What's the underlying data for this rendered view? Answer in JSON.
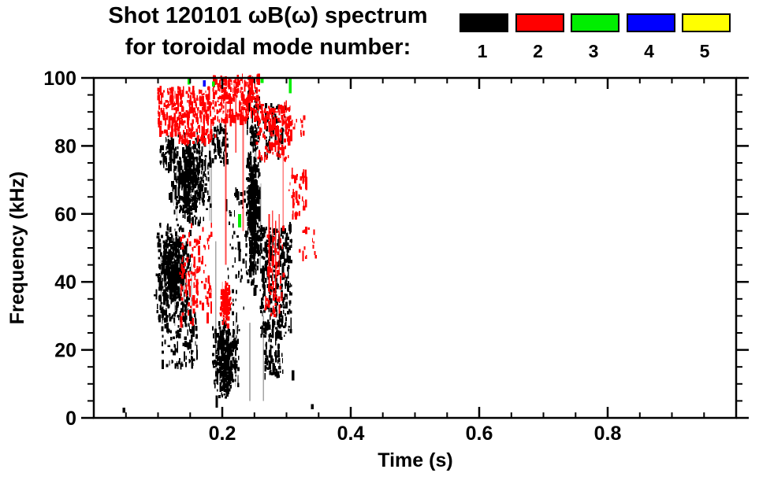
{
  "title": {
    "line1": "Shot 120101 ωB(ω) spectrum",
    "line2": "for toroidal mode number:"
  },
  "chart_data": {
    "type": "scatter",
    "subtype": "mode-spectrogram-speckle",
    "title": "Shot 120101 ωB(ω) spectrum for toroidal mode number",
    "xlabel": "Time (s)",
    "ylabel": "Frequency (kHz)",
    "xlim": [
      0,
      1.0
    ],
    "ylim": [
      0,
      100
    ],
    "grid": false,
    "x_major_ticks": {
      "values": [
        0.2,
        0.4,
        0.6,
        0.8
      ],
      "labels": [
        "0.2",
        "0.4",
        "0.6",
        "0.8"
      ]
    },
    "y_major_ticks": {
      "values": [
        0,
        20,
        40,
        60,
        80,
        100
      ],
      "labels": [
        "0",
        "20",
        "40",
        "60",
        "80",
        "100"
      ]
    },
    "x_minor_step": 0.05,
    "y_minor_step": 5,
    "tick_style": {
      "x_direction": "inward",
      "y_direction": "outward"
    },
    "legend": {
      "position": "top-right",
      "modes": [
        {
          "label": "1",
          "color": "#000000"
        },
        {
          "label": "2",
          "color": "#ff0000"
        },
        {
          "label": "3",
          "color": "#00ee00"
        },
        {
          "label": "4",
          "color": "#0000ff"
        },
        {
          "label": "5",
          "color": "#ffff00"
        }
      ]
    },
    "clusters": [
      {
        "mode": 1,
        "shape": "blob",
        "t": [
          0.094,
          0.152
        ],
        "f": [
          27,
          58
        ],
        "n": 520
      },
      {
        "mode": 1,
        "shape": "blob",
        "t": [
          0.116,
          0.186
        ],
        "f": [
          56,
          84
        ],
        "n": 440
      },
      {
        "mode": 1,
        "shape": "speckle",
        "t": [
          0.104,
          0.126
        ],
        "f": [
          73,
          83
        ],
        "n": 45
      },
      {
        "mode": 1,
        "shape": "speckle",
        "t": [
          0.106,
          0.162
        ],
        "f": [
          15,
          31
        ],
        "n": 110
      },
      {
        "mode": 1,
        "shape": "blob",
        "t": [
          0.184,
          0.228
        ],
        "f": [
          4,
          30
        ],
        "n": 300
      },
      {
        "mode": 1,
        "shape": "speckle",
        "t": [
          0.184,
          0.208
        ],
        "f": [
          75,
          86
        ],
        "n": 65
      },
      {
        "mode": 1,
        "shape": "speckle",
        "t": [
          0.206,
          0.238
        ],
        "f": [
          28,
          68
        ],
        "n": 55
      },
      {
        "mode": 1,
        "shape": "blob",
        "t": [
          0.236,
          0.26
        ],
        "f": [
          36,
          84
        ],
        "n": 440
      },
      {
        "mode": 1,
        "shape": "speckle",
        "t": [
          0.238,
          0.258
        ],
        "f": [
          82,
          97
        ],
        "n": 55
      },
      {
        "mode": 1,
        "shape": "speckle",
        "t": [
          0.26,
          0.308
        ],
        "f": [
          24,
          56
        ],
        "n": 290
      },
      {
        "mode": 1,
        "shape": "speckle",
        "t": [
          0.266,
          0.294
        ],
        "f": [
          12,
          25
        ],
        "n": 70
      },
      {
        "mode": 1,
        "shape": "speckle",
        "t": [
          0.264,
          0.298
        ],
        "f": [
          77,
          92
        ],
        "n": 55
      },
      {
        "mode": 2,
        "shape": "speckle",
        "t": [
          0.1,
          0.132
        ],
        "f": [
          83,
          97
        ],
        "n": 90
      },
      {
        "mode": 2,
        "shape": "speckle",
        "t": [
          0.128,
          0.19
        ],
        "f": [
          81,
          97
        ],
        "n": 220
      },
      {
        "mode": 2,
        "shape": "speckle",
        "t": [
          0.186,
          0.258
        ],
        "f": [
          87,
          100
        ],
        "n": 230
      },
      {
        "mode": 2,
        "shape": "speckle",
        "t": [
          0.254,
          0.306
        ],
        "f": [
          76,
          92
        ],
        "n": 160
      },
      {
        "mode": 2,
        "shape": "speckle",
        "t": [
          0.134,
          0.184
        ],
        "f": [
          28,
          57
        ],
        "n": 120
      },
      {
        "mode": 2,
        "shape": "blob",
        "t": [
          0.196,
          0.215
        ],
        "f": [
          26,
          40
        ],
        "n": 95
      },
      {
        "mode": 2,
        "shape": "speckle",
        "t": [
          0.266,
          0.296
        ],
        "f": [
          30,
          56
        ],
        "n": 55
      },
      {
        "mode": 2,
        "shape": "speckle",
        "t": [
          0.304,
          0.332
        ],
        "f": [
          59,
          72
        ],
        "n": 45
      },
      {
        "mode": 2,
        "shape": "speckle",
        "t": [
          0.3,
          0.328
        ],
        "f": [
          83,
          89
        ],
        "n": 20
      },
      {
        "mode": 2,
        "shape": "speckle",
        "t": [
          0.316,
          0.346
        ],
        "f": [
          47,
          56
        ],
        "n": 16
      }
    ],
    "streaks": [
      {
        "mode": 2,
        "t": 0.2055,
        "f": [
          45,
          93
        ],
        "opacity": 0.7
      },
      {
        "mode": 2,
        "t": 0.221,
        "f": [
          78,
          100
        ],
        "opacity": 0.8
      },
      {
        "mode": 2,
        "t": 0.2325,
        "f": [
          55,
          95
        ],
        "opacity": 0.6
      },
      {
        "mode": 2,
        "t": 0.273,
        "f": [
          37,
          60
        ],
        "opacity": 0.9
      },
      {
        "mode": 2,
        "t": 0.278,
        "f": [
          40,
          61
        ],
        "opacity": 0.7
      },
      {
        "mode": 2,
        "t": 0.283,
        "f": [
          36,
          58
        ],
        "opacity": 0.9
      },
      {
        "mode": 2,
        "t": 0.2885,
        "f": [
          42,
          60
        ],
        "opacity": 0.7
      },
      {
        "mode": 2,
        "t": 0.295,
        "f": [
          55,
          78
        ],
        "opacity": 0.5
      },
      {
        "mode": 1,
        "t": 0.19,
        "f": [
          18,
          52
        ],
        "opacity": 0.35
      },
      {
        "mode": 1,
        "t": 0.243,
        "f": [
          5,
          28
        ],
        "opacity": 0.3
      },
      {
        "mode": 1,
        "t": 0.264,
        "f": [
          5,
          30
        ],
        "opacity": 0.35
      }
    ],
    "points": [
      {
        "mode": 1,
        "t": 0.047,
        "f": [
          1.5,
          3
        ]
      },
      {
        "mode": 1,
        "t": 0.31,
        "f": [
          11,
          14
        ]
      },
      {
        "mode": 1,
        "t": 0.34,
        "f": [
          2.5,
          4
        ]
      },
      {
        "mode": 3,
        "t": 0.148,
        "f": [
          98,
          100
        ]
      },
      {
        "mode": 3,
        "t": 0.186,
        "f": [
          97.5,
          99
        ]
      },
      {
        "mode": 3,
        "t": 0.227,
        "f": [
          56,
          60
        ]
      },
      {
        "mode": 3,
        "t": 0.262,
        "f": [
          98.5,
          100
        ]
      },
      {
        "mode": 3,
        "t": 0.306,
        "f": [
          95.5,
          100
        ]
      },
      {
        "mode": 4,
        "t": 0.172,
        "f": [
          97.5,
          99.3
        ]
      }
    ]
  }
}
